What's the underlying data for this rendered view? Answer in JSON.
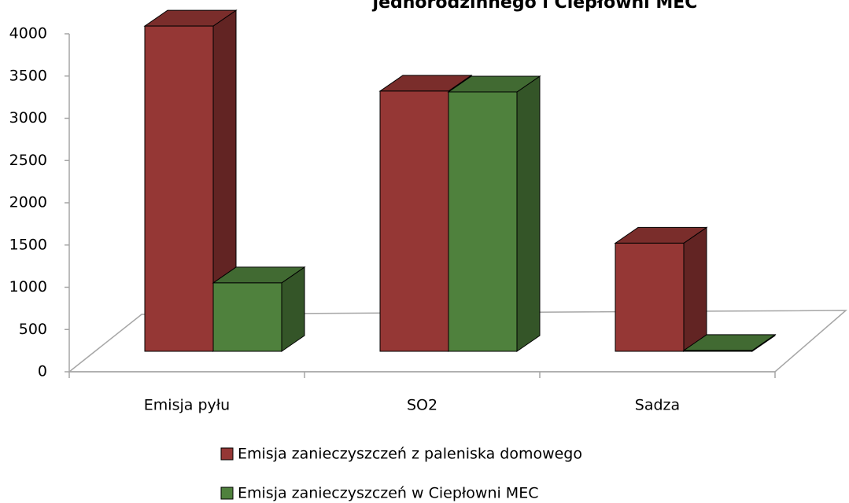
{
  "chart_data": {
    "type": "bar3d",
    "title": "jednorodzinnego i Ciepłowni MEC",
    "categories": [
      "Emisja pyłu",
      "SO2",
      "Sadza"
    ],
    "series": [
      {
        "name": "Emisja zanieczyszczeń z paleniska domowego",
        "color": "#953735",
        "values": [
          3850,
          3080,
          1280
        ]
      },
      {
        "name": "Emisja zanieczyszczeń w Ciepłowni MEC",
        "color": "#4f813d",
        "values": [
          810,
          3070,
          10
        ]
      }
    ],
    "ylim": [
      0,
      4000
    ],
    "yticks": [
      0,
      500,
      1000,
      1500,
      2000,
      2500,
      3000,
      3500,
      4000
    ]
  }
}
